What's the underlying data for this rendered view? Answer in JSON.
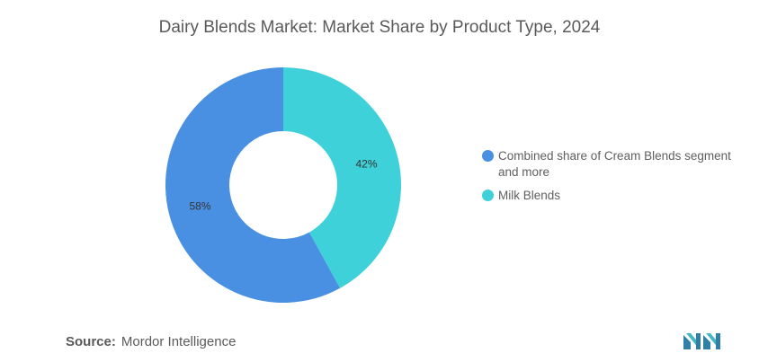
{
  "title": "Dairy Blends Market: Market Share by Product Type, 2024",
  "source": {
    "label": "Source:",
    "value": "Mordor Intelligence"
  },
  "logo": {
    "icon": "mordor-intelligence-logo"
  },
  "chart_data": {
    "type": "pie",
    "variant": "donut",
    "title": "Dairy Blends Market: Market Share by Product Type, 2024",
    "legend_position": "right",
    "series": [
      {
        "name": "Combined share of Cream Blends segment and more",
        "value": 58,
        "label": "58%",
        "color": "#4a90e2"
      },
      {
        "name": "Milk Blends",
        "value": 42,
        "label": "42%",
        "color": "#3fd1d9"
      }
    ]
  }
}
